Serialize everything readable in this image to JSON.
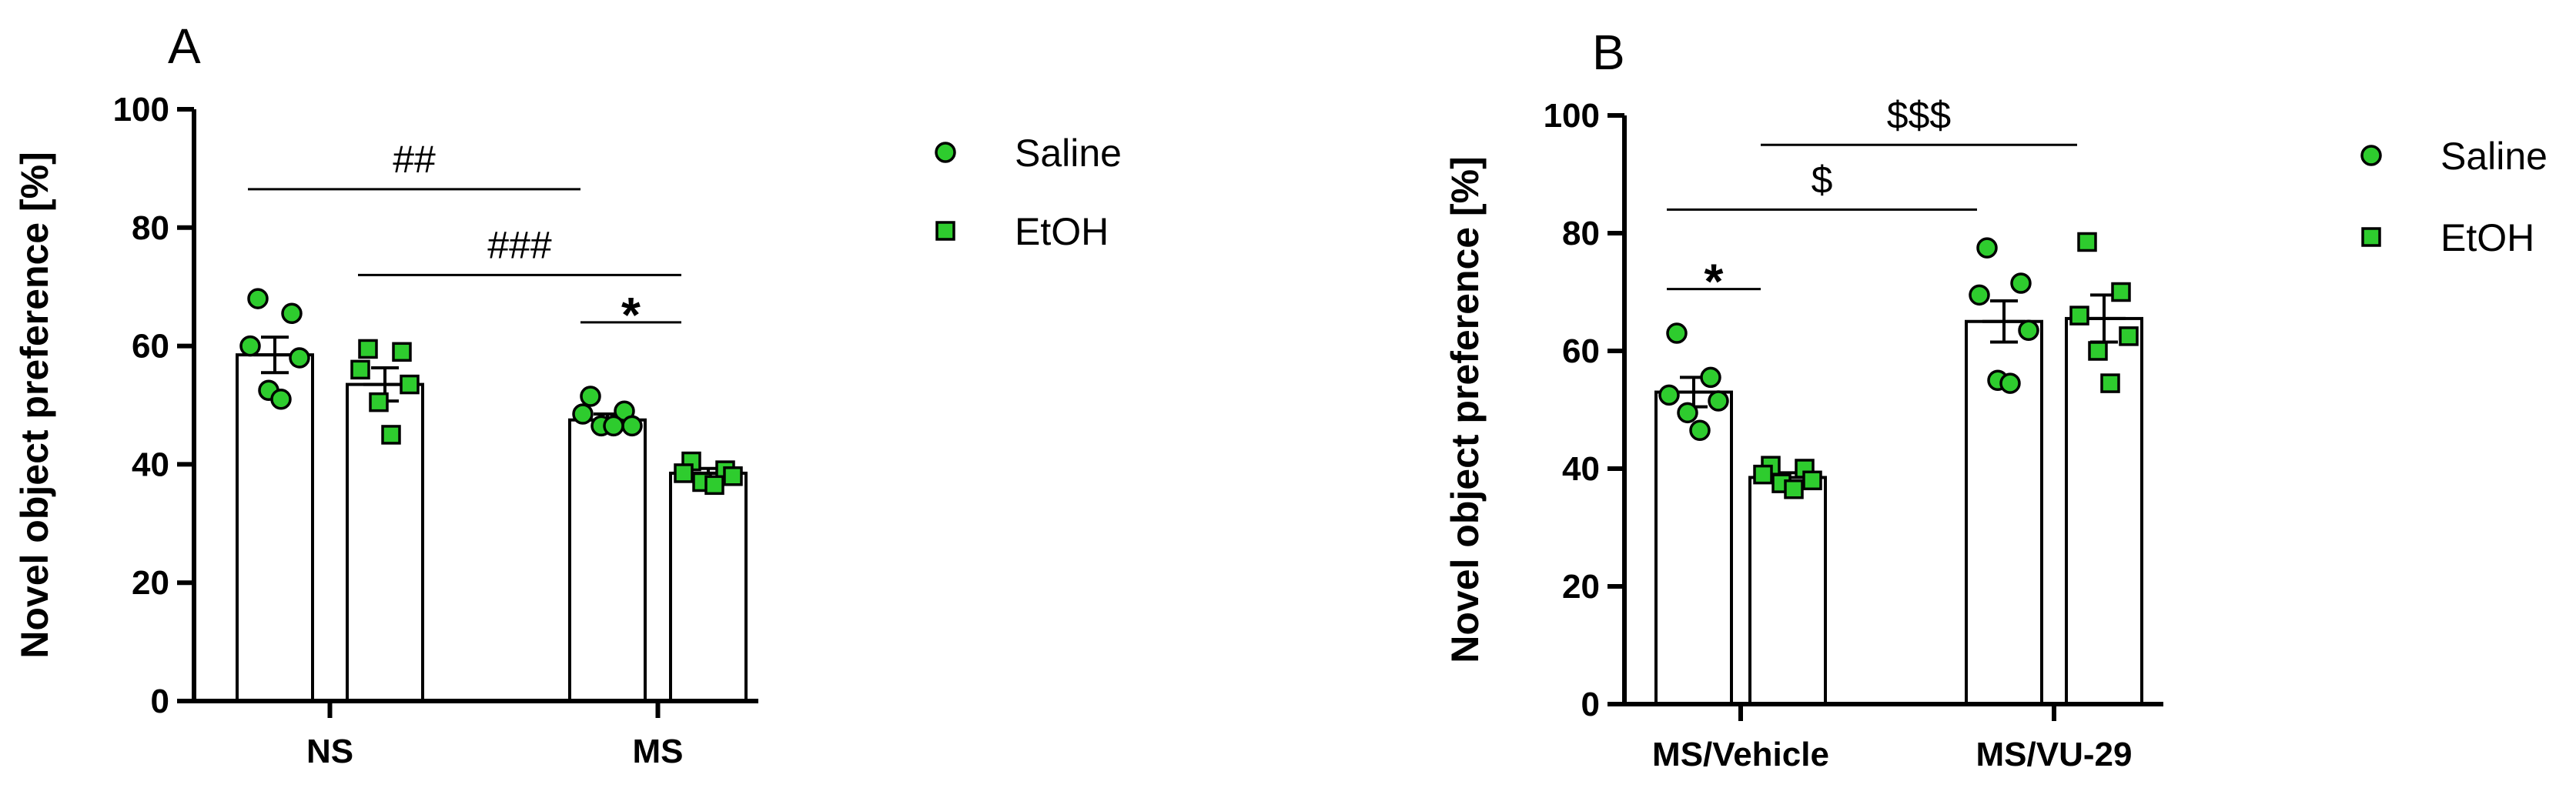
{
  "colors": {
    "marker_fill": "#2ecc2e",
    "marker_stroke": "#000000",
    "bar_fill": "#ffffff",
    "axis": "#000000"
  },
  "chart_data": [
    {
      "panel": "A",
      "type": "bar",
      "ylabel": "Novel object preference [%]",
      "ylim": [
        0,
        100
      ],
      "yticks": [
        0,
        20,
        40,
        60,
        80,
        100
      ],
      "groups": [
        "NS",
        "MS"
      ],
      "legend": {
        "placement": "right",
        "entries": [
          {
            "name": "Saline",
            "marker": "circle"
          },
          {
            "name": "EtOH",
            "marker": "square"
          }
        ]
      },
      "series": [
        {
          "name": "Saline",
          "marker": "circle",
          "means": [
            58.5,
            47.5
          ],
          "sem": [
            3.0,
            1.0
          ],
          "points": [
            [
              68,
              65.5,
              60,
              58,
              52.5,
              51
            ],
            [
              51.5,
              49,
              48.5,
              46.5,
              46.5,
              46.5
            ]
          ]
        },
        {
          "name": "EtOH",
          "marker": "square",
          "means": [
            53.5,
            38.5
          ],
          "sem": [
            2.8,
            0.8
          ],
          "points": [
            [
              59.5,
              59,
              56,
              53.5,
              50.5,
              45
            ],
            [
              40.5,
              39,
              38.5,
              38,
              37,
              36.5
            ]
          ]
        }
      ],
      "significance": [
        {
          "label": "##",
          "from": [
            "NS",
            "Saline"
          ],
          "to": [
            "MS",
            "Saline"
          ],
          "y": 86.5
        },
        {
          "label": "###",
          "from": [
            "NS",
            "EtOH"
          ],
          "to": [
            "MS",
            "EtOH"
          ],
          "y": 72
        },
        {
          "label": "*",
          "from": [
            "MS",
            "Saline"
          ],
          "to": [
            "MS",
            "EtOH"
          ],
          "y": 64
        }
      ]
    },
    {
      "panel": "B",
      "type": "bar",
      "ylabel": "Novel object preference [%]",
      "ylim": [
        0,
        100
      ],
      "yticks": [
        0,
        20,
        40,
        60,
        80,
        100
      ],
      "groups": [
        "MS/Vehicle",
        "MS/VU-29"
      ],
      "legend": {
        "placement": "right",
        "entries": [
          {
            "name": "Saline",
            "marker": "circle"
          },
          {
            "name": "EtOH",
            "marker": "square"
          }
        ]
      },
      "series": [
        {
          "name": "Saline",
          "marker": "circle",
          "means": [
            53,
            65
          ],
          "sem": [
            2.5,
            3.5
          ],
          "points": [
            [
              63,
              55.5,
              52.5,
              51.5,
              49.5,
              46.5
            ],
            [
              77.5,
              71.5,
              69.5,
              63.5,
              55,
              54.5
            ]
          ]
        },
        {
          "name": "EtOH",
          "marker": "square",
          "means": [
            38.5,
            65.5
          ],
          "sem": [
            0.8,
            4.0
          ],
          "points": [
            [
              40.5,
              40,
              39,
              38,
              37.5,
              36.5
            ],
            [
              78.5,
              70,
              66,
              62.5,
              60,
              54.5
            ]
          ]
        }
      ],
      "significance": [
        {
          "label": "$$$",
          "from": [
            "MS/Vehicle",
            "EtOH"
          ],
          "to": [
            "MS/VU-29",
            "EtOH"
          ],
          "y": 95
        },
        {
          "label": "$",
          "from": [
            "MS/Vehicle",
            "Saline"
          ],
          "to": [
            "MS/VU-29",
            "Saline"
          ],
          "y": 84
        },
        {
          "label": "*",
          "from": [
            "MS/Vehicle",
            "Saline"
          ],
          "to": [
            "MS/Vehicle",
            "EtOH"
          ],
          "y": 70.5
        }
      ]
    }
  ]
}
